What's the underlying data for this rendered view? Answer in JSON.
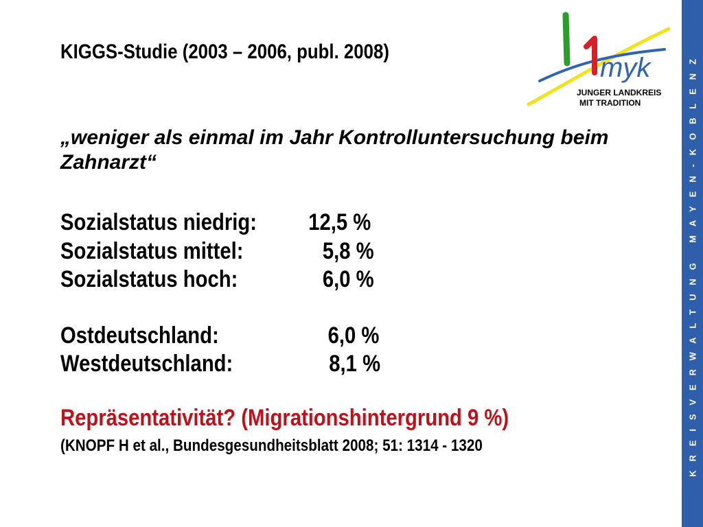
{
  "slide": {
    "title": "KIGGS-Studie (2003 – 2006, publ. 2008)",
    "quote": "„weniger als einmal im Jahr Kontrolluntersuchung beim Zahnarzt“",
    "social": [
      {
        "label": "Sozialstatus niedrig:",
        "value": "12,5 %"
      },
      {
        "label": "Sozialstatus mittel:",
        "value": "5,8 %"
      },
      {
        "label": "Sozialstatus hoch:",
        "value": "6,0 %"
      }
    ],
    "regions": [
      {
        "label": "Ostdeutschland:",
        "value": "6,0 %"
      },
      {
        "label": "Westdeutschland:",
        "value": "8,1 %"
      }
    ],
    "representativity": "Repräsentativität?  (Migrationshintergrund 9 %)",
    "citation": "(KNOPF H et al., Bundesgesundheitsblatt 2008; 51: 1314 - 1320"
  },
  "logo": {
    "mark": "myk",
    "line1": "JUNGER LANDKREIS",
    "line2": "MIT TRADITION"
  },
  "sidebar": {
    "text": "KREISVERWALTUNG MAYEN-KOBLENZ"
  },
  "colors": {
    "sidebar": "#2f5eab",
    "highlight": "#c0111a",
    "logo_green": "#2a9d2a",
    "logo_red": "#d8202a",
    "logo_yellow": "#f2e21c",
    "logo_blue": "#2e63b5"
  }
}
